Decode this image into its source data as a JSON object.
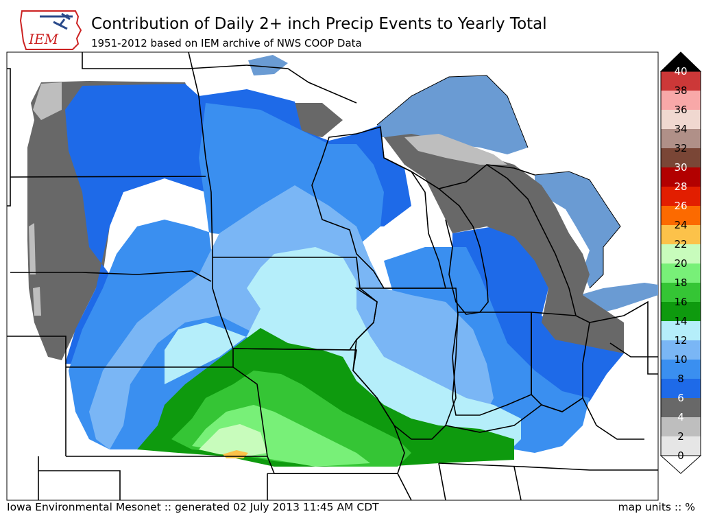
{
  "header": {
    "logo_text": "IEM",
    "title": "Contribution of Daily 2+ inch Precip Events to Yearly Total",
    "subtitle": "1951-2012 based on IEM archive of NWS COOP Data"
  },
  "footer": {
    "left": "Iowa Environmental Mesonet :: generated 02 July 2013 11:45 AM CDT",
    "right": "map units :: %"
  },
  "colorbar": {
    "labels": [
      "0",
      "2",
      "4",
      "6",
      "8",
      "10",
      "12",
      "14",
      "16",
      "18",
      "20",
      "22",
      "24",
      "26",
      "28",
      "30",
      "32",
      "34",
      "36",
      "38",
      "40"
    ],
    "colors": [
      "#e6e6e6",
      "#bebebe",
      "#686868",
      "#1e6ae8",
      "#3a8ff0",
      "#7ab6f5",
      "#b5eefa",
      "#0e9a0e",
      "#35c535",
      "#78f078",
      "#c8fcbc",
      "#fcc24a",
      "#fc6a00",
      "#e21e00",
      "#b20000",
      "#7a4636",
      "#b09088",
      "#f0d8d0",
      "#f8a8a8",
      "#cc3838"
    ],
    "top_color": "#000000"
  },
  "map_colors": {
    "land": "#ffffff",
    "water": "#6a9bd3",
    "border": "#000000"
  }
}
